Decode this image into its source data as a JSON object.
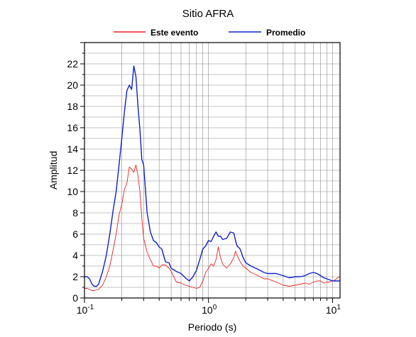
{
  "chart_data": {
    "type": "line",
    "title": "Sitio AFRA",
    "xlabel": "Periodo (s)",
    "ylabel": "Amplitud",
    "xscale": "log",
    "xlim": [
      0.1,
      11.5
    ],
    "ylim": [
      0,
      24
    ],
    "grid": true,
    "legend_position": "top-center",
    "x_ticks": [
      {
        "base": "10",
        "exp": "-1",
        "value": 0.1
      },
      {
        "base": "10",
        "exp": "0",
        "value": 1
      },
      {
        "base": "10",
        "exp": "1",
        "value": 10
      }
    ],
    "y_ticks": [
      0,
      2,
      4,
      6,
      8,
      10,
      12,
      14,
      16,
      18,
      20,
      22
    ],
    "series": [
      {
        "name": "Este evento",
        "color": "#ee2222",
        "x": [
          0.1,
          0.105,
          0.11,
          0.115,
          0.12,
          0.13,
          0.14,
          0.15,
          0.16,
          0.17,
          0.18,
          0.19,
          0.2,
          0.21,
          0.22,
          0.23,
          0.24,
          0.25,
          0.26,
          0.27,
          0.28,
          0.29,
          0.3,
          0.32,
          0.34,
          0.36,
          0.38,
          0.4,
          0.42,
          0.45,
          0.48,
          0.5,
          0.55,
          0.6,
          0.65,
          0.7,
          0.75,
          0.8,
          0.85,
          0.9,
          0.95,
          1.0,
          1.05,
          1.1,
          1.15,
          1.2,
          1.25,
          1.3,
          1.4,
          1.5,
          1.6,
          1.65,
          1.7,
          1.8,
          1.9,
          2.0,
          2.2,
          2.4,
          2.6,
          2.8,
          3.0,
          3.5,
          4.0,
          4.5,
          5.0,
          5.5,
          6.0,
          6.5,
          7.0,
          7.5,
          8.0,
          8.5,
          9.0,
          9.5,
          10.0,
          10.5,
          11.0,
          11.5
        ],
        "y": [
          0.9,
          0.9,
          0.8,
          0.7,
          0.7,
          0.8,
          1.2,
          2.0,
          3.0,
          4.5,
          6.0,
          7.8,
          8.8,
          10.2,
          10.8,
          12.3,
          12.1,
          11.8,
          12.5,
          11.5,
          10.0,
          7.5,
          5.6,
          4.3,
          3.6,
          3.0,
          3.0,
          2.8,
          3.1,
          3.1,
          2.8,
          2.5,
          1.5,
          1.4,
          1.2,
          1.1,
          1.0,
          0.9,
          1.0,
          1.6,
          2.4,
          2.8,
          3.2,
          3.0,
          3.6,
          4.8,
          3.8,
          3.2,
          2.8,
          3.2,
          3.8,
          4.4,
          4.0,
          3.4,
          3.0,
          2.8,
          2.4,
          2.2,
          2.0,
          1.8,
          1.8,
          1.5,
          1.2,
          1.1,
          1.2,
          1.3,
          1.4,
          1.3,
          1.5,
          1.6,
          1.6,
          1.4,
          1.5,
          1.5,
          1.6,
          1.7,
          1.9,
          2.0
        ]
      },
      {
        "name": "Promedio",
        "color": "#1122cc",
        "x": [
          0.1,
          0.105,
          0.11,
          0.115,
          0.12,
          0.125,
          0.13,
          0.14,
          0.15,
          0.16,
          0.17,
          0.18,
          0.19,
          0.2,
          0.21,
          0.22,
          0.23,
          0.24,
          0.25,
          0.26,
          0.27,
          0.28,
          0.29,
          0.3,
          0.32,
          0.34,
          0.36,
          0.38,
          0.4,
          0.42,
          0.45,
          0.48,
          0.5,
          0.55,
          0.6,
          0.65,
          0.7,
          0.75,
          0.8,
          0.85,
          0.9,
          0.95,
          1.0,
          1.05,
          1.1,
          1.15,
          1.2,
          1.25,
          1.3,
          1.4,
          1.5,
          1.6,
          1.65,
          1.7,
          1.8,
          1.9,
          2.0,
          2.2,
          2.4,
          2.6,
          2.8,
          3.0,
          3.5,
          4.0,
          4.5,
          5.0,
          5.5,
          6.0,
          6.5,
          7.0,
          7.5,
          8.0,
          8.5,
          9.0,
          9.5,
          10.0,
          10.5,
          11.0,
          11.5
        ],
        "y": [
          2.0,
          2.0,
          1.8,
          1.3,
          1.1,
          1.1,
          1.3,
          2.5,
          4.0,
          6.0,
          8.2,
          10.0,
          12.5,
          15.0,
          17.5,
          19.5,
          20.0,
          19.6,
          21.8,
          20.8,
          18.0,
          15.8,
          13.0,
          12.5,
          8.0,
          6.2,
          5.4,
          5.2,
          4.8,
          4.6,
          3.4,
          3.3,
          2.8,
          2.5,
          2.3,
          1.9,
          1.6,
          2.0,
          2.6,
          3.6,
          4.6,
          4.9,
          5.4,
          5.3,
          5.8,
          6.2,
          5.8,
          5.8,
          5.5,
          5.6,
          6.2,
          6.1,
          5.4,
          4.9,
          4.6,
          3.8,
          3.3,
          3.0,
          2.8,
          2.6,
          2.4,
          2.3,
          2.3,
          2.1,
          1.9,
          2.0,
          2.0,
          2.1,
          2.3,
          2.4,
          2.3,
          2.1,
          1.9,
          1.8,
          1.7,
          1.6,
          1.6,
          1.6,
          1.6
        ]
      }
    ]
  }
}
